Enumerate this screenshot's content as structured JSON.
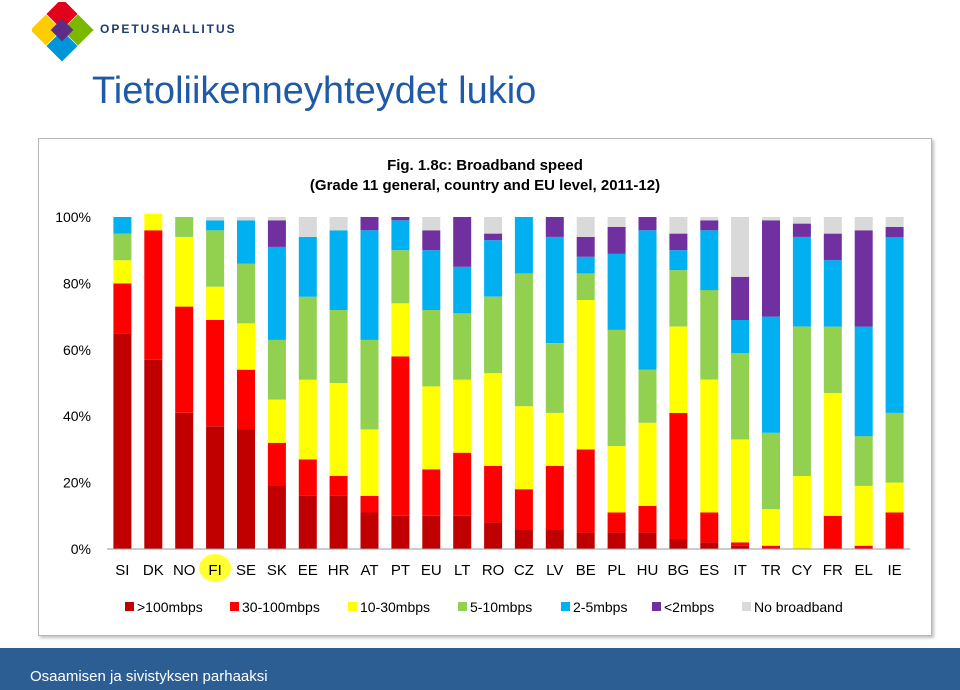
{
  "header": {
    "org_name": "OPETUSHALLITUS",
    "title": "Tietoliikenneyhteydet lukio",
    "logo_colors": [
      "#e2001a",
      "#7ab800",
      "#0095d9",
      "#ffcc00",
      "#5b2d86"
    ]
  },
  "footer": {
    "text": "Osaamisen ja sivistyksen parhaaksi"
  },
  "chart_data": {
    "type": "bar",
    "stacked": true,
    "title": "Fig. 1.8c: Broadband speed",
    "subtitle": "(Grade 11 general, country and EU level, 2011-12)",
    "xlabel": "",
    "ylabel": "",
    "ylim": [
      0,
      100
    ],
    "yticks": [
      "0%",
      "20%",
      "40%",
      "60%",
      "80%",
      "100%"
    ],
    "grid": false,
    "legend_position": "bottom",
    "highlight_category": "FI",
    "categories": [
      "SI",
      "DK",
      "NO",
      "FI",
      "SE",
      "SK",
      "EE",
      "HR",
      "AT",
      "PT",
      "EU",
      "LT",
      "RO",
      "CZ",
      "LV",
      "BE",
      "PL",
      "HU",
      "BG",
      "ES",
      "IT",
      "TR",
      "CY",
      "FR",
      "EL",
      "IE"
    ],
    "series": [
      {
        "name": ">100mbps",
        "color": "#c00000",
        "values": [
          65,
          57,
          41,
          37,
          36,
          19,
          16,
          16,
          11,
          10,
          10,
          10,
          8,
          6,
          6,
          5,
          5,
          5,
          3,
          2,
          1,
          0,
          0,
          0,
          0,
          0
        ]
      },
      {
        "name": "30-100mbps",
        "color": "#ff0000",
        "values": [
          15,
          39,
          32,
          32,
          18,
          13,
          11,
          6,
          5,
          48,
          14,
          19,
          17,
          12,
          19,
          25,
          6,
          8,
          38,
          9,
          1,
          1,
          0,
          10,
          1,
          11
        ]
      },
      {
        "name": "10-30mbps",
        "color": "#ffff00",
        "values": [
          7,
          5,
          21,
          10,
          14,
          13,
          24,
          28,
          20,
          16,
          25,
          22,
          28,
          25,
          16,
          45,
          20,
          25,
          26,
          40,
          31,
          11,
          22,
          37,
          18,
          9
        ]
      },
      {
        "name": "5-10mbps",
        "color": "#92d050",
        "values": [
          8,
          0,
          6,
          17,
          18,
          18,
          25,
          22,
          27,
          16,
          23,
          20,
          23,
          40,
          21,
          8,
          35,
          16,
          17,
          27,
          26,
          23,
          45,
          20,
          15,
          21
        ]
      },
      {
        "name": "2-5mbps",
        "color": "#00b0f0",
        "values": [
          5,
          0,
          0,
          3,
          13,
          28,
          18,
          24,
          33,
          9,
          18,
          14,
          17,
          17,
          32,
          5,
          23,
          42,
          6,
          18,
          10,
          35,
          27,
          20,
          33,
          53
        ]
      },
      {
        "name": "<2mbps",
        "color": "#7030a0",
        "values": [
          0,
          0,
          0,
          0,
          0,
          8,
          0,
          0,
          4,
          1,
          6,
          15,
          2,
          0,
          6,
          6,
          8,
          4,
          5,
          3,
          13,
          29,
          4,
          8,
          29,
          3
        ]
      },
      {
        "name": "No broadband",
        "color": "#d9d9d9",
        "values": [
          0,
          0,
          0,
          1,
          1,
          1,
          6,
          4,
          0,
          0,
          4,
          0,
          5,
          0,
          0,
          6,
          3,
          0,
          5,
          1,
          18,
          1,
          2,
          5,
          4,
          3
        ]
      }
    ]
  }
}
